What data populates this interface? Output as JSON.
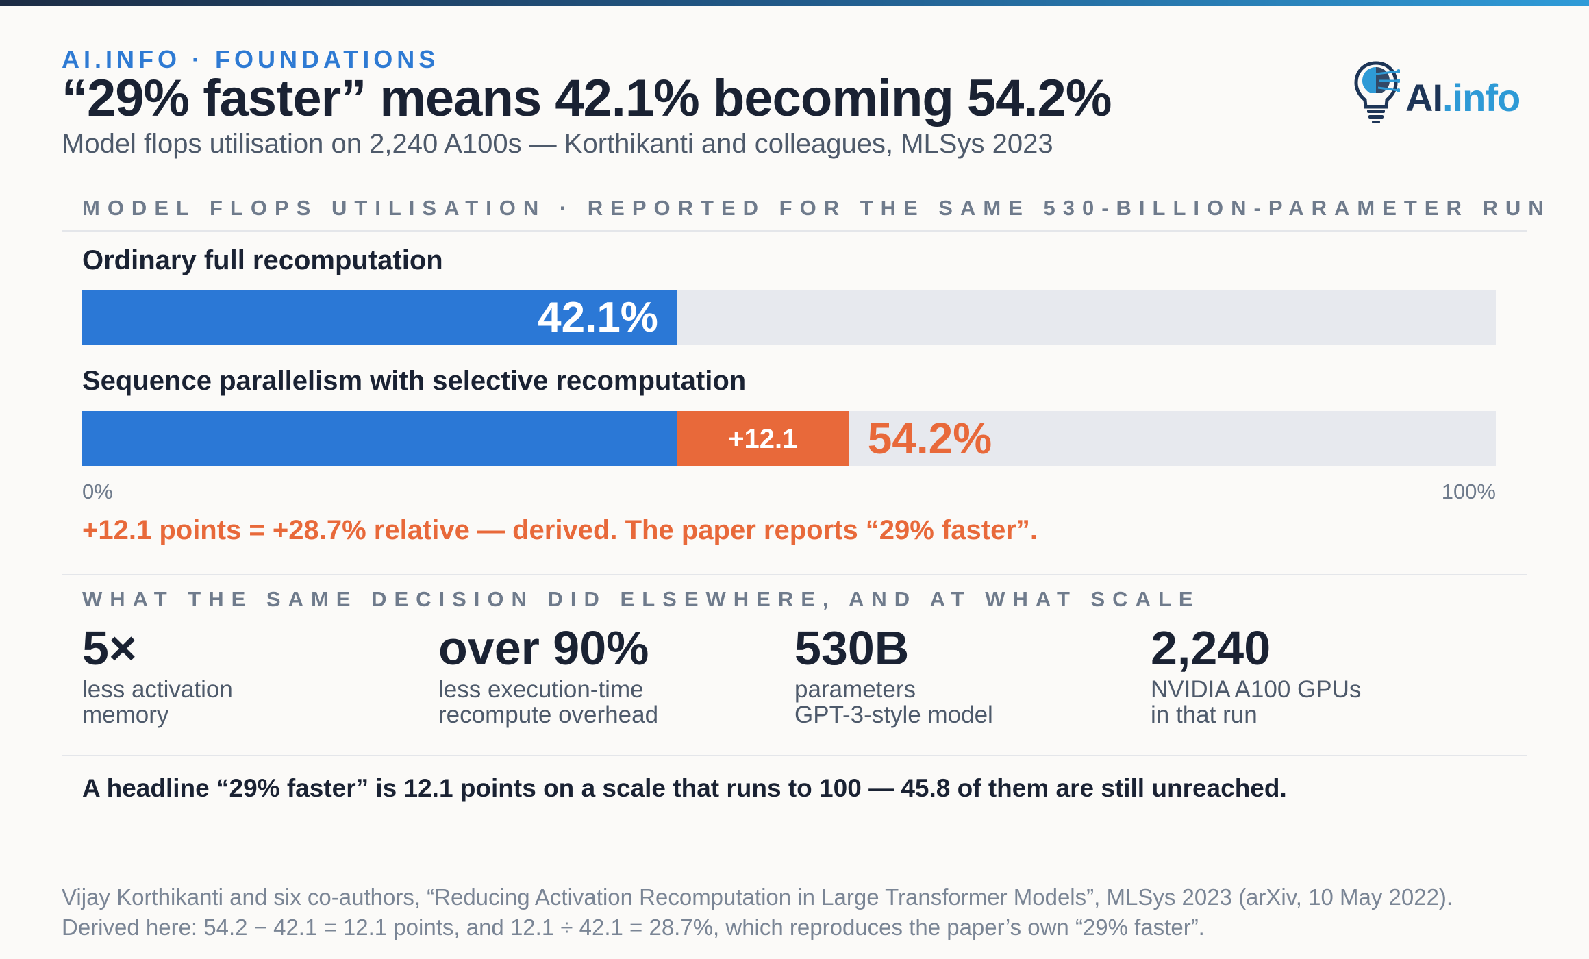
{
  "header": {
    "kicker": "AI.INFO · FOUNDATIONS",
    "title": "“29% faster” means 42.1% becoming 54.2%",
    "subtitle": "Model flops utilisation on 2,240 A100s — Korthikanti and colleagues, MLSys 2023",
    "logo": {
      "ai": "AI",
      "info": ".info"
    }
  },
  "colors": {
    "baseline": "#2b78d6",
    "gain": "#e8693a",
    "track": "#e7e9ee",
    "accent": "#2e7ad3"
  },
  "chart_data": {
    "type": "bar",
    "orientation": "horizontal",
    "title": "MODEL FLOPS UTILISATION · REPORTED FOR THE SAME 530-BILLION-PARAMETER RUN",
    "xlim": [
      0,
      100
    ],
    "x_tick_labels": [
      "0%",
      "100%"
    ],
    "categories": [
      "Ordinary full recomputation",
      "Sequence parallelism with selective recomputation"
    ],
    "series": [
      {
        "values": [
          42.1,
          42.1
        ]
      },
      {
        "values": [
          0,
          12.1
        ]
      }
    ],
    "totals": [
      42.1,
      54.2
    ],
    "value_labels": [
      "42.1%",
      "54.2%"
    ],
    "delta_label": "+12.1"
  },
  "callout": "+12.1 points = +28.7% relative — derived. The paper reports “29% faster”.",
  "stats_section": {
    "label": "WHAT THE SAME DECISION DID ELSEWHERE, AND AT WHAT SCALE",
    "items": [
      {
        "value": "5×",
        "line1": "less activation",
        "line2": "memory"
      },
      {
        "value": "over 90%",
        "line1": "less execution-time",
        "line2": "recompute overhead"
      },
      {
        "value": "530B",
        "line1": "parameters",
        "line2": "GPT-3-style model"
      },
      {
        "value": "2,240",
        "line1": "NVIDIA A100 GPUs",
        "line2": "in that run"
      }
    ]
  },
  "summary": "A headline “29% faster” is 12.1 points on a scale that runs to 100 — 45.8 of them are still unreached.",
  "source": {
    "line1": "Vijay Korthikanti and six co-authors, “Reducing Activation Recomputation in Large Transformer Models”, MLSys 2023 (arXiv, 10 May 2022).",
    "line2": "Derived here: 54.2 − 42.1 = 12.1 points, and 12.1 ÷ 42.1 = 28.7%, which reproduces the paper’s own “29% faster”."
  }
}
